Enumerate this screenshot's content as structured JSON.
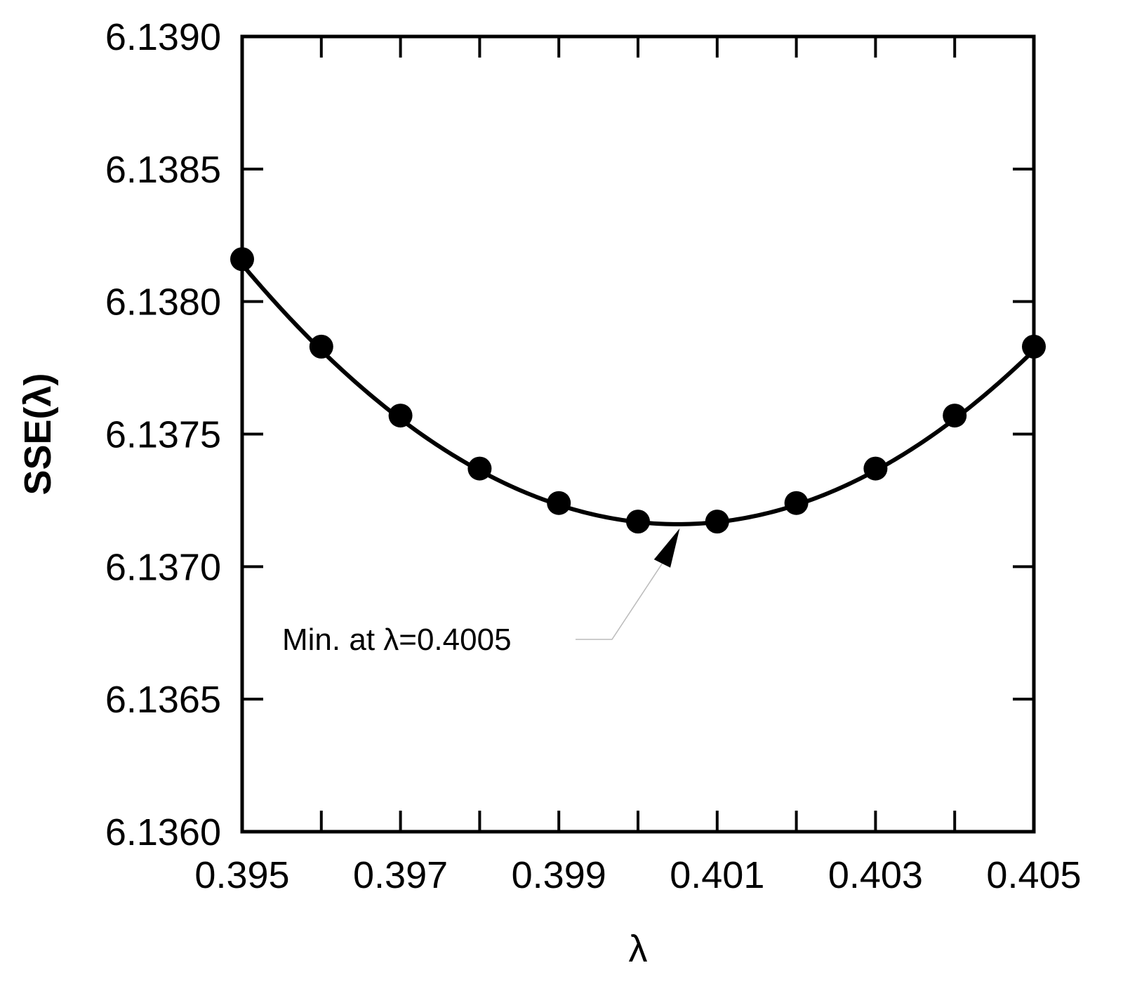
{
  "chart_data": {
    "type": "scatter",
    "title": "",
    "xlabel": "λ",
    "ylabel": "SSE(λ)",
    "xlim": [
      0.395,
      0.405
    ],
    "ylim": [
      6.136,
      6.139
    ],
    "x_ticks": [
      0.395,
      0.396,
      0.397,
      0.398,
      0.399,
      0.4,
      0.401,
      0.402,
      0.403,
      0.404,
      0.405
    ],
    "x_tick_labels": [
      "0.395",
      "",
      "0.397",
      "",
      "0.399",
      "",
      "0.401",
      "",
      "0.403",
      "",
      "0.405"
    ],
    "y_ticks": [
      6.136,
      6.1365,
      6.137,
      6.1375,
      6.138,
      6.1385,
      6.139
    ],
    "y_tick_labels": [
      "6.1360",
      "6.1365",
      "6.1370",
      "6.1375",
      "6.1380",
      "6.1385",
      "6.1390"
    ],
    "grid": false,
    "series": [
      {
        "type": "scatter",
        "x": [
          0.395,
          0.396,
          0.397,
          0.398,
          0.399,
          0.4,
          0.401,
          0.402,
          0.403,
          0.404,
          0.405
        ],
        "y": [
          6.13816,
          6.13783,
          6.13757,
          6.13737,
          6.13724,
          6.13717,
          6.13717,
          6.13724,
          6.13737,
          6.13757,
          6.13783
        ]
      }
    ],
    "fit_curve": {
      "type": "line",
      "form": "quadratic",
      "x_min": 0.4005,
      "y_min": 6.13716,
      "y_at_x_start": 6.13814
    },
    "annotation": {
      "text": "Min. at λ=0.4005",
      "x": 0.4005,
      "y": 6.13716
    },
    "colors": {
      "marker": "#000000",
      "line": "#000000",
      "leader": "#bbbbbb"
    }
  }
}
